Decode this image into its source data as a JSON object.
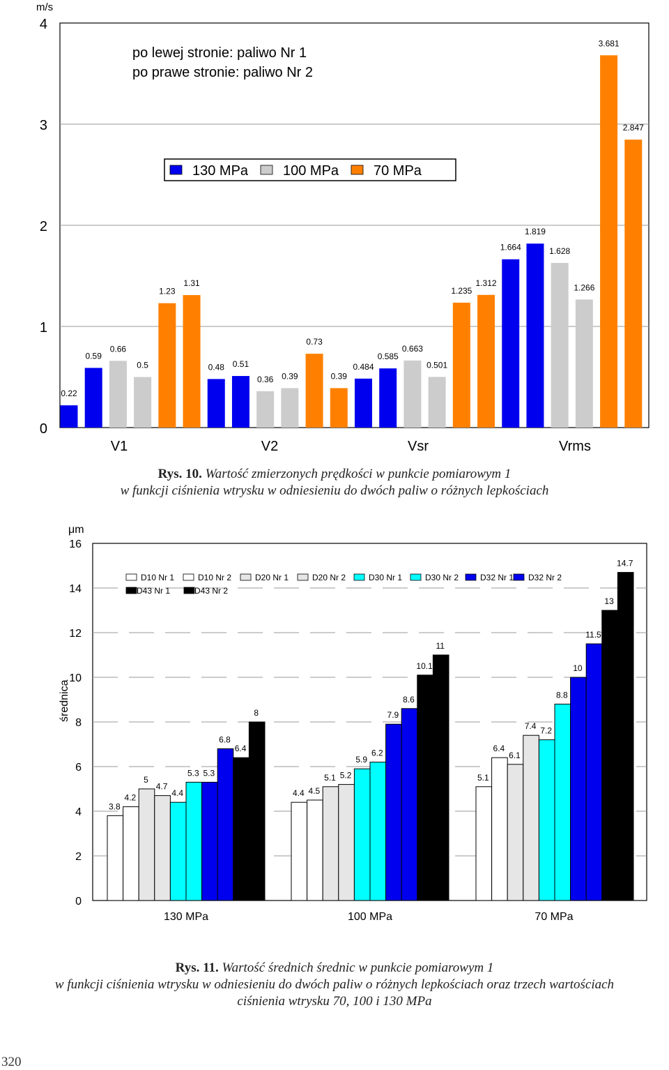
{
  "page_number": "320",
  "chart_data": [
    {
      "type": "bar",
      "unit_label": "m/s",
      "ylim": [
        0,
        4
      ],
      "yticks": [
        "0",
        "1",
        "2",
        "3",
        "4"
      ],
      "categories": [
        "V1",
        "V2",
        "Vsr",
        "Vrms"
      ],
      "note_line1": "po lewej stronie: paliwo Nr 1",
      "note_line2": "po prawe stronie: paliwo Nr 2",
      "series": [
        {
          "name": "130 MPa",
          "color": "#0000ee"
        },
        {
          "name": "100 MPa",
          "color": "#cccccc"
        },
        {
          "name": "70 MPa",
          "color": "#ff8000"
        }
      ],
      "bars": [
        {
          "value": 0.22,
          "label": "0.22",
          "series": 0
        },
        {
          "value": 0.59,
          "label": "0.59",
          "series": 0
        },
        {
          "value": 0.66,
          "label": "0.66",
          "series": 1
        },
        {
          "value": 0.5,
          "label": "0.5",
          "series": 1
        },
        {
          "value": 1.23,
          "label": "1.23",
          "series": 2
        },
        {
          "value": 1.31,
          "label": "1.31",
          "series": 2
        },
        {
          "value": 0.48,
          "label": "0.48",
          "series": 0
        },
        {
          "value": 0.51,
          "label": "0.51",
          "series": 0
        },
        {
          "value": 0.36,
          "label": "0.36",
          "series": 1
        },
        {
          "value": 0.39,
          "label": "0.39",
          "series": 1
        },
        {
          "value": 0.73,
          "label": "0.73",
          "series": 2
        },
        {
          "value": 0.39,
          "label": "0.39",
          "series": 2
        },
        {
          "value": 0.484,
          "label": "0.484",
          "series": 0
        },
        {
          "value": 0.585,
          "label": "0.585",
          "series": 0
        },
        {
          "value": 0.663,
          "label": "0.663",
          "series": 1
        },
        {
          "value": 0.501,
          "label": "0.501",
          "series": 1
        },
        {
          "value": 1.235,
          "label": "1.235",
          "series": 2
        },
        {
          "value": 1.312,
          "label": "1.312",
          "series": 2
        },
        {
          "value": 1.664,
          "label": "1.664",
          "series": 0
        },
        {
          "value": 1.819,
          "label": "1.819",
          "series": 0
        },
        {
          "value": 1.628,
          "label": "1.628",
          "series": 1
        },
        {
          "value": 1.266,
          "label": "1.266",
          "series": 1
        },
        {
          "value": 3.681,
          "label": "3.681",
          "series": 2
        },
        {
          "value": 2.847,
          "label": "2.847",
          "series": 2
        }
      ]
    },
    {
      "type": "bar",
      "unit_label": "μm",
      "ylabel": "średnica",
      "ylim": [
        0,
        16
      ],
      "yticks": [
        "0",
        "2",
        "4",
        "6",
        "8",
        "10",
        "12",
        "14",
        "16"
      ],
      "categories": [
        "130 MPa",
        "100 MPa",
        "70 MPa"
      ],
      "series": [
        {
          "name": "D10 Nr 1",
          "color": "#ffffff"
        },
        {
          "name": "D10 Nr 2",
          "color": "#ffffff"
        },
        {
          "name": "D20 Nr 1",
          "color": "#e6e6e6"
        },
        {
          "name": "D20 Nr 2",
          "color": "#e6e6e6"
        },
        {
          "name": "D30 Nr 1",
          "color": "#00ffff"
        },
        {
          "name": "D30 Nr 2",
          "color": "#00ffff"
        },
        {
          "name": "D32 Nr 1",
          "color": "#0000ee"
        },
        {
          "name": "D32 Nr 2",
          "color": "#0000ee"
        },
        {
          "name": "D43 Nr 1",
          "color": "#000000"
        },
        {
          "name": "D43 Nr 2",
          "color": "#000000"
        }
      ],
      "values": [
        {
          "category": "130 MPa",
          "data": [
            3.8,
            4.2,
            5,
            4.7,
            4.4,
            5.3,
            5.3,
            6.8,
            6.4,
            8
          ],
          "labels": [
            "3.8",
            "4.2",
            "5",
            "4.7",
            "4.4",
            "5.3",
            "5.3",
            "6.8",
            "6.4",
            "8"
          ]
        },
        {
          "category": "100 MPa",
          "data": [
            4.4,
            4.5,
            5.1,
            5.2,
            5.9,
            6.2,
            7.9,
            8.6,
            10.1,
            11
          ],
          "labels": [
            "4.4",
            "4.5",
            "5.1",
            "5.2",
            "5.9",
            "6.2",
            "7.9",
            "8.6",
            "10.1",
            "11"
          ]
        },
        {
          "category": "70 MPa",
          "data": [
            5.1,
            6.4,
            6.1,
            7.4,
            7.2,
            8.8,
            10,
            11.5,
            13,
            14.7
          ],
          "labels": [
            "5.1",
            "6.4",
            "6.1",
            "7.4",
            "7.2",
            "8.8",
            "10",
            "11.5",
            "13",
            "14.7"
          ]
        }
      ]
    }
  ],
  "captions": {
    "fig10_number": "Rys. 10.",
    "fig10_line1": "Wartość zmierzonych prędkości w punkcie pomiarowym 1",
    "fig10_line2": "w funkcji ciśnienia wtrysku w odniesieniu do dwóch paliw o różnych lepkościach",
    "fig11_number": "Rys. 11.",
    "fig11_line1": "Wartość średnich średnic w punkcie pomiarowym 1",
    "fig11_line2": "w funkcji ciśnienia wtrysku w odniesieniu do dwóch paliw o różnych lepkościach oraz trzech wartościach",
    "fig11_line3": "ciśnienia wtrysku 70, 100 i 130 MPa"
  }
}
